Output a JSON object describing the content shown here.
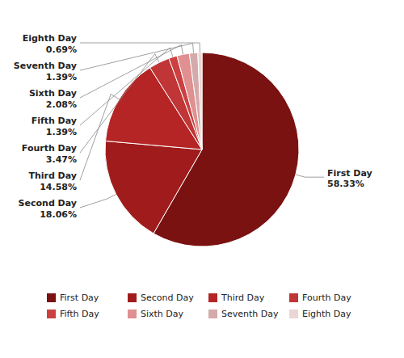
{
  "chart_data": {
    "type": "pie",
    "categories": [
      "First Day",
      "Second Day",
      "Third Day",
      "Fourth Day",
      "Fifth Day",
      "Sixth Day",
      "Seventh Day",
      "Eighth Day"
    ],
    "values": [
      58.33,
      18.06,
      14.58,
      3.47,
      1.39,
      2.08,
      1.39,
      0.69
    ],
    "colors": [
      "#7B1212",
      "#A01C1C",
      "#B52525",
      "#C03535",
      "#CC4040",
      "#E09090",
      "#D4AAAA",
      "#EDD5D5"
    ],
    "data_labels": true,
    "value_labels": [
      "58.33%",
      "18.06%",
      "14.58%",
      "3.47%",
      "1.39%",
      "2.08%",
      "1.39%",
      "0.69%"
    ],
    "legend": "bottom"
  }
}
